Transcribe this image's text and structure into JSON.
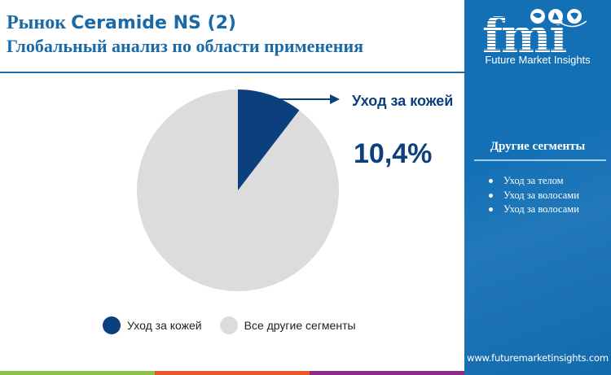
{
  "header": {
    "title_prefix": "Рынок ",
    "title_brand": "Ceramide NS (2)",
    "subtitle": "Глобальный анализ по области применения"
  },
  "sidebar": {
    "logo_text": "fmi",
    "logo_subtitle": "Future Market Insights",
    "segments_heading": "Другие сегменты",
    "segments": [
      {
        "label": "Уход за телом"
      },
      {
        "label": "Уход за волосами"
      },
      {
        "label": "Уход за волосами"
      }
    ],
    "website": "www.futuremarketinsights.com"
  },
  "colors": {
    "accent": "#1a6aa8",
    "panel": "#1470b5",
    "highlight_slice": "#0b3f7e",
    "other_slice": "#dcdcdc",
    "strip": [
      "#8bc34a",
      "#e8572a",
      "#8b2c84"
    ]
  },
  "callout": {
    "label": "Уход за кожей",
    "value": "10,4%"
  },
  "legend": [
    {
      "label": "Уход за кожей",
      "color": "#0b3f7e"
    },
    {
      "label": "Все другие сегменты",
      "color": "#dcdcdc"
    }
  ],
  "chart_data": {
    "type": "pie",
    "title": "Рынок Ceramide NS (2) — Глобальный анализ по области применения",
    "categories": [
      "Уход за кожей",
      "Все другие сегменты"
    ],
    "values": [
      10.4,
      89.6
    ],
    "unit": "%",
    "colors": [
      "#0b3f7e",
      "#dcdcdc"
    ],
    "start_angle": "12 o'clock, clockwise",
    "annotations": [
      {
        "target": "Уход за кожей",
        "text": "Уход за кожей 10,4%"
      }
    ],
    "legend_position": "bottom"
  }
}
